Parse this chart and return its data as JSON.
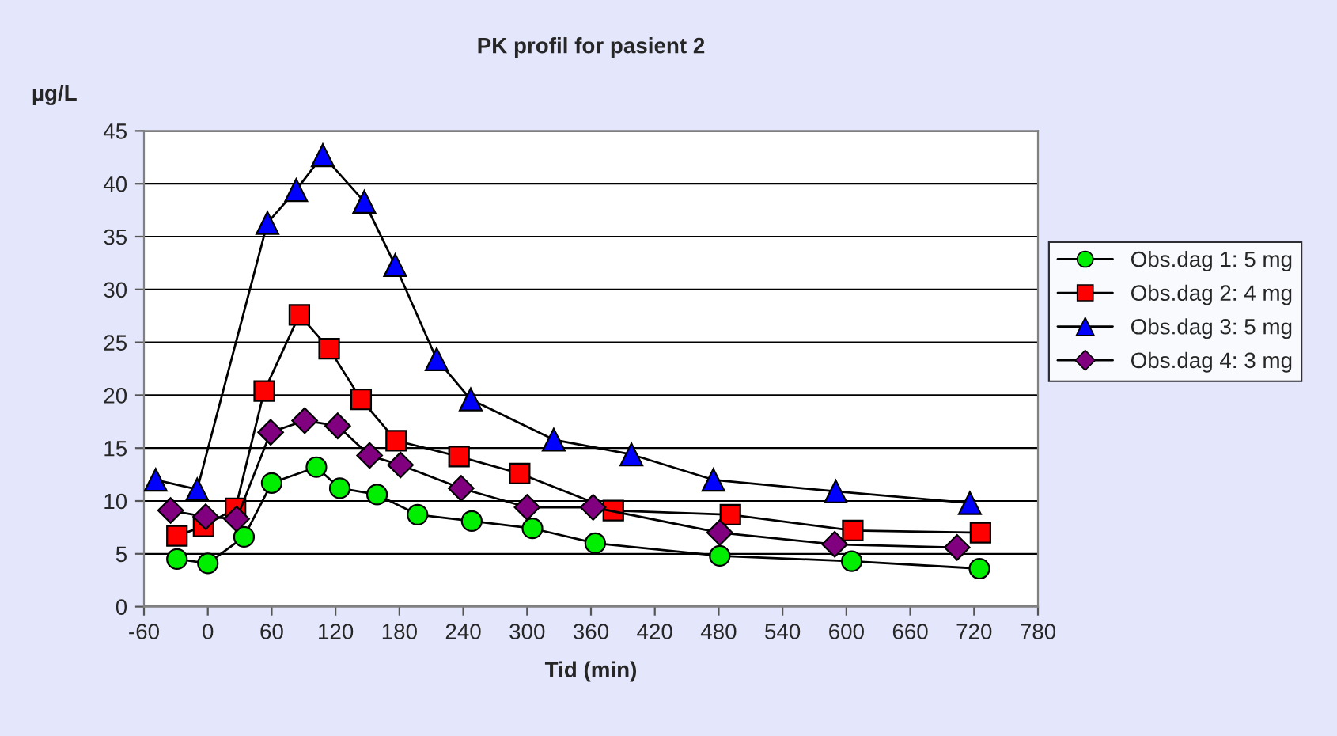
{
  "chart_data": {
    "type": "line",
    "title": "PK profil for pasient 2",
    "xlabel": "Tid (min)",
    "ylabel": "µg/L",
    "xlim": [
      -60,
      780
    ],
    "xticks": [
      -60,
      0,
      60,
      120,
      180,
      240,
      300,
      360,
      420,
      480,
      540,
      600,
      660,
      720,
      780
    ],
    "ylim": [
      0,
      45
    ],
    "yticks": [
      0,
      5,
      10,
      15,
      20,
      25,
      30,
      35,
      40,
      45
    ],
    "grid": "y",
    "legend": "right",
    "line_style": "solid",
    "series": [
      {
        "name": "Obs.dag 1: 5 mg",
        "color": "#00ee00",
        "marker": "circle",
        "x": [
          -29,
          0,
          34,
          60,
          102,
          124,
          159,
          197,
          248,
          305,
          364,
          481,
          605,
          725
        ],
        "values": [
          4.5,
          4.1,
          6.6,
          11.7,
          13.2,
          11.2,
          10.6,
          8.7,
          8.1,
          7.4,
          6.0,
          4.8,
          4.3,
          3.6
        ]
      },
      {
        "name": "Obs.dag 2: 4 mg",
        "color": "#ff0000",
        "marker": "square",
        "x": [
          -29,
          -4,
          26,
          53,
          86,
          114,
          144,
          177,
          236,
          293,
          381,
          491,
          606,
          726
        ],
        "values": [
          6.7,
          7.6,
          9.3,
          20.4,
          27.6,
          24.4,
          19.6,
          15.7,
          14.2,
          12.6,
          9.1,
          8.7,
          7.2,
          7.0
        ]
      },
      {
        "name": "Obs.dag 3: 5 mg",
        "color": "#0000ff",
        "marker": "triangle",
        "x": [
          -49,
          -10,
          56,
          83,
          108,
          147,
          176,
          215,
          247,
          325,
          398,
          475,
          590,
          716
        ],
        "values": [
          12.0,
          11.1,
          36.3,
          39.4,
          42.7,
          38.3,
          32.3,
          23.4,
          19.6,
          15.8,
          14.4,
          12.0,
          10.9,
          9.8
        ]
      },
      {
        "name": "Obs.dag 4: 3 mg",
        "color": "#800080",
        "marker": "diamond",
        "x": [
          -35,
          -2,
          27,
          59,
          91,
          122,
          152,
          181,
          238,
          300,
          362,
          481,
          589,
          704
        ],
        "values": [
          9.1,
          8.5,
          8.3,
          16.5,
          17.6,
          17.1,
          14.3,
          13.4,
          11.2,
          9.4,
          9.4,
          7.0,
          5.9,
          5.6
        ]
      }
    ]
  }
}
